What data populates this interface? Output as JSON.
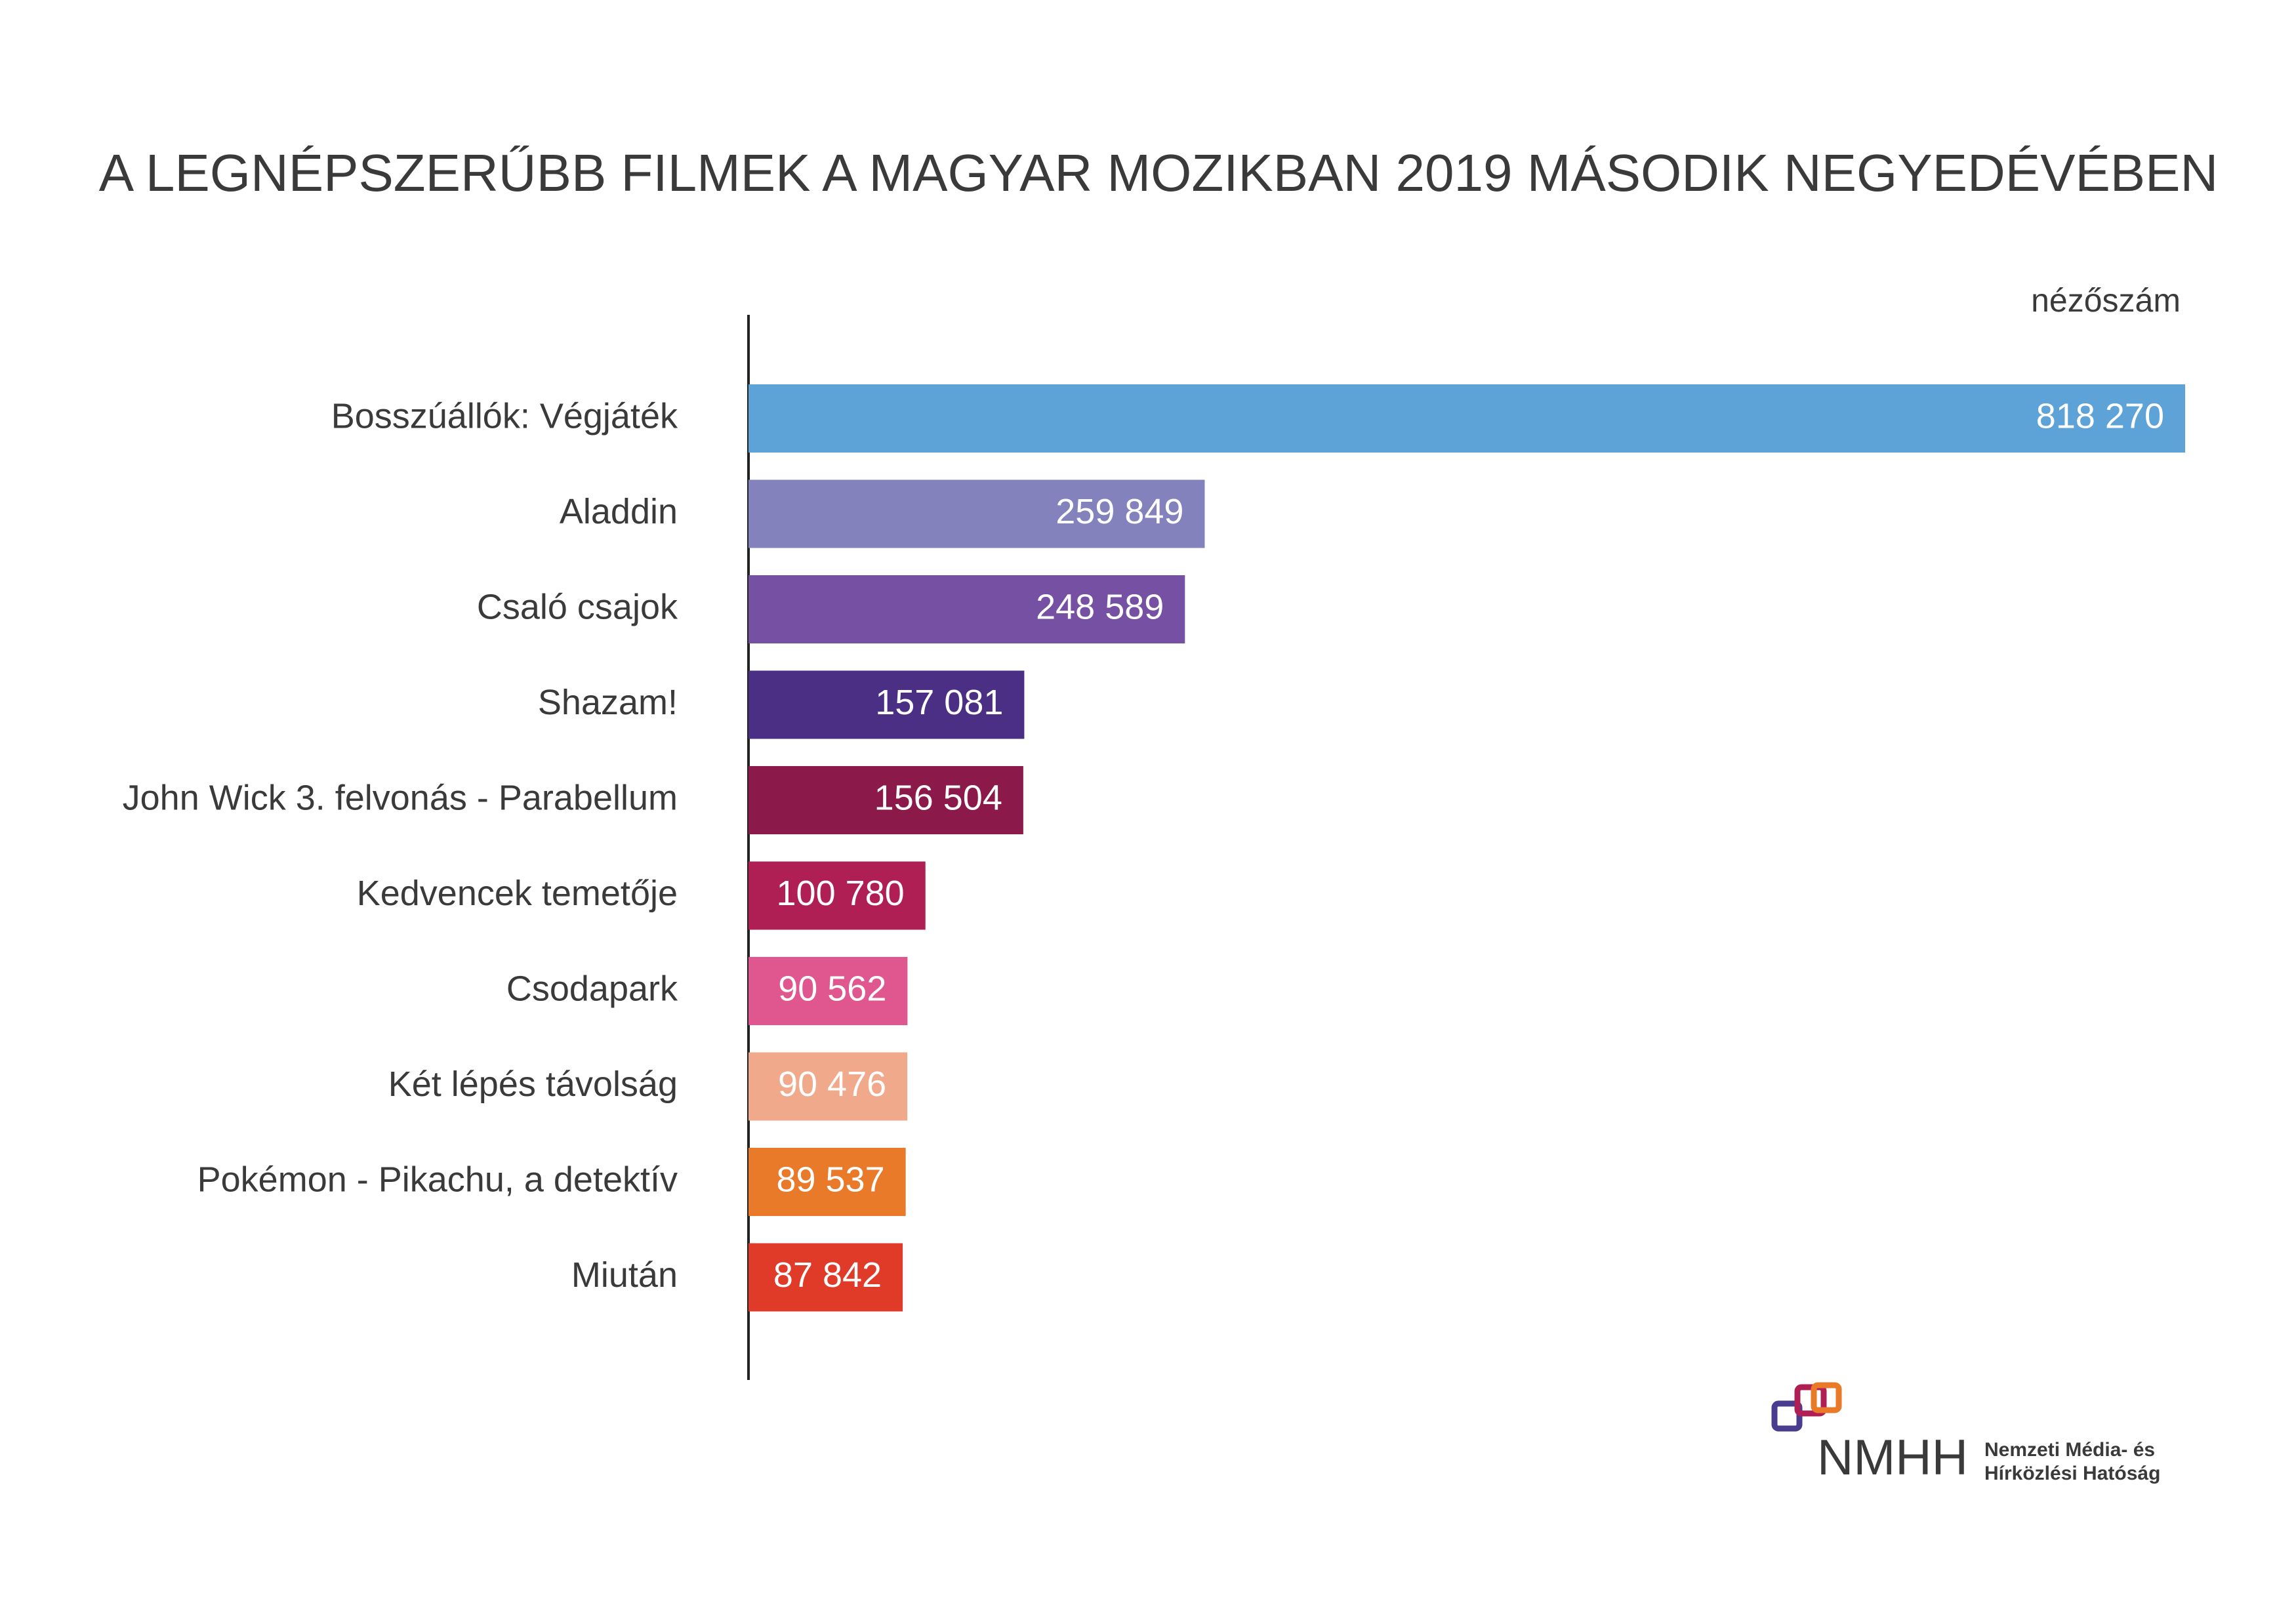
{
  "chart_data": {
    "type": "bar",
    "orientation": "horizontal",
    "title": "A LEGNÉPSZERŰBB FILMEK A MAGYAR MOZIKBAN 2019 MÁSODIK NEGYEDÉVÉBEN",
    "value_axis_label": "nézőszám",
    "categories": [
      "Bosszúállók: Végjáték",
      "Aladdin",
      "Csaló csajok",
      "Shazam!",
      "John Wick 3. felvonás - Parabellum",
      "Kedvencek temetője",
      "Csodapark",
      "Két lépés távolság",
      "Pokémon - Pikachu, a detektív",
      "Miután"
    ],
    "values": [
      818270,
      259849,
      248589,
      157081,
      156504,
      100780,
      90562,
      90476,
      89537,
      87842
    ],
    "value_labels": [
      "818 270",
      "259 849",
      "248 589",
      "157 081",
      "156 504",
      "100 780",
      "90 562",
      "90 476",
      "89 537",
      "87 842"
    ],
    "colors": [
      "#5ea3d8",
      "#8482bd",
      "#7550a3",
      "#4a2f85",
      "#8b1a4b",
      "#b01f53",
      "#e0578f",
      "#f0aa8b",
      "#e87a2a",
      "#e03a29"
    ]
  },
  "logo": {
    "mark": "NMHH",
    "lines": [
      "Nemzeti Média- és",
      "Hírközlési Hatóság"
    ]
  }
}
